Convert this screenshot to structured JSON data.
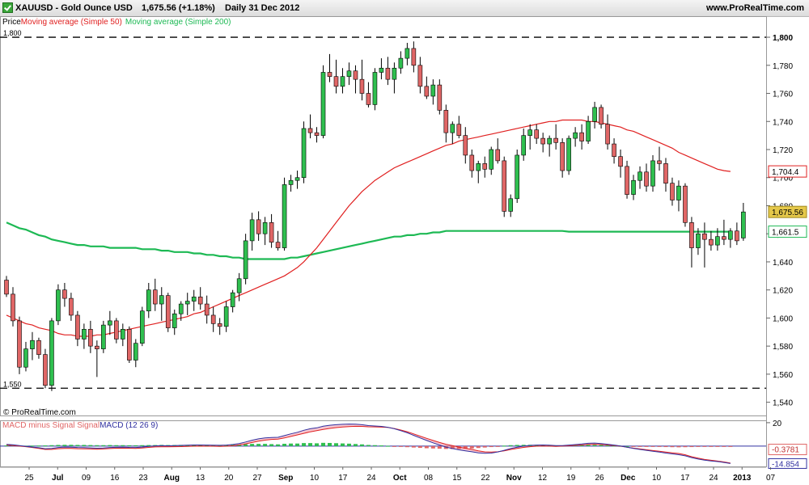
{
  "header": {
    "symbol": "XAUUSD - Gold Ounce USD",
    "price_change": "1,675.56 (+1.18%)",
    "period": "Daily  31 Dec 2012",
    "brand": "www.ProRealTime.com"
  },
  "legend": {
    "price": "Price",
    "ma50": "Moving average (Simple 50)",
    "ma200": "Moving average (Simple 200)"
  },
  "credit": "© ProRealTime.com",
  "macd_legend": {
    "hist": "MACD minus Signal Signal",
    "macd": "MACD (12 26 9)"
  },
  "colors": {
    "up": "#2fbf4f",
    "down": "#e06666",
    "ma50": "#e02020",
    "ma200": "#1db954",
    "macd": "#3030a0",
    "signal": "#e02020",
    "current": "#e5c84a"
  },
  "chart_data": [
    {
      "type": "candlestick",
      "title": "XAUUSD - Gold Ounce USD",
      "ylim": [
        1530,
        1815
      ],
      "y_ticks": [
        "1,540",
        "1,560",
        "1,580",
        "1,600",
        "1,620",
        "1,640",
        "1,660",
        "1,680",
        "1,700",
        "1,720",
        "1,740",
        "1,760",
        "1,780",
        "1,800"
      ],
      "x_tick_labels": [
        "25",
        "Jul",
        "09",
        "16",
        "23",
        "Aug",
        "13",
        "20",
        "27",
        "Sep",
        "10",
        "17",
        "24",
        "Oct",
        "08",
        "15",
        "22",
        "Nov",
        "12",
        "19",
        "26",
        "Dec",
        "10",
        "17",
        "24",
        "2013",
        "07"
      ],
      "bold_tick_labels": [
        "Jul",
        "Aug",
        "Sep",
        "Oct",
        "Nov",
        "Dec",
        "2013"
      ],
      "reference_lines": [
        {
          "value": 1800,
          "label": "1,800"
        },
        {
          "value": 1550,
          "label": "1,550"
        }
      ],
      "candles": [
        [
          1627,
          1630,
          1615,
          1617
        ],
        [
          1617,
          1622,
          1594,
          1598
        ],
        [
          1598,
          1601,
          1560,
          1565
        ],
        [
          1565,
          1583,
          1562,
          1578
        ],
        [
          1578,
          1590,
          1570,
          1584
        ],
        [
          1584,
          1586,
          1571,
          1574
        ],
        [
          1574,
          1578,
          1550,
          1552
        ],
        [
          1552,
          1600,
          1548,
          1598
        ],
        [
          1598,
          1624,
          1595,
          1620
        ],
        [
          1620,
          1625,
          1608,
          1614
        ],
        [
          1614,
          1618,
          1598,
          1602
        ],
        [
          1602,
          1605,
          1580,
          1585
        ],
        [
          1585,
          1596,
          1578,
          1592
        ],
        [
          1592,
          1598,
          1575,
          1580
        ],
        [
          1580,
          1584,
          1558,
          1578
        ],
        [
          1578,
          1598,
          1575,
          1595
        ],
        [
          1595,
          1605,
          1588,
          1598
        ],
        [
          1598,
          1600,
          1582,
          1585
        ],
        [
          1585,
          1596,
          1580,
          1592
        ],
        [
          1592,
          1594,
          1568,
          1570
        ],
        [
          1570,
          1585,
          1565,
          1582
        ],
        [
          1582,
          1608,
          1580,
          1605
        ],
        [
          1605,
          1625,
          1600,
          1620
        ],
        [
          1620,
          1628,
          1605,
          1610
        ],
        [
          1610,
          1622,
          1598,
          1616
        ],
        [
          1616,
          1618,
          1590,
          1593
        ],
        [
          1593,
          1606,
          1588,
          1603
        ],
        [
          1603,
          1612,
          1598,
          1610
        ],
        [
          1610,
          1618,
          1602,
          1612
        ],
        [
          1612,
          1620,
          1605,
          1615
        ],
        [
          1615,
          1622,
          1606,
          1610
        ],
        [
          1610,
          1616,
          1596,
          1602
        ],
        [
          1602,
          1608,
          1590,
          1596
        ],
        [
          1596,
          1600,
          1588,
          1594
        ],
        [
          1594,
          1612,
          1590,
          1608
        ],
        [
          1608,
          1620,
          1604,
          1618
        ],
        [
          1618,
          1632,
          1612,
          1628
        ],
        [
          1628,
          1660,
          1624,
          1655
        ],
        [
          1655,
          1675,
          1648,
          1670
        ],
        [
          1670,
          1676,
          1655,
          1660
        ],
        [
          1660,
          1672,
          1652,
          1668
        ],
        [
          1668,
          1674,
          1650,
          1654
        ],
        [
          1654,
          1662,
          1648,
          1650
        ],
        [
          1650,
          1700,
          1648,
          1695
        ],
        [
          1695,
          1702,
          1690,
          1698
        ],
        [
          1698,
          1705,
          1692,
          1700
        ],
        [
          1700,
          1740,
          1696,
          1735
        ],
        [
          1735,
          1745,
          1728,
          1732
        ],
        [
          1732,
          1736,
          1725,
          1730
        ],
        [
          1730,
          1780,
          1728,
          1775
        ],
        [
          1775,
          1788,
          1768,
          1772
        ],
        [
          1772,
          1784,
          1760,
          1765
        ],
        [
          1765,
          1778,
          1760,
          1772
        ],
        [
          1772,
          1782,
          1766,
          1776
        ],
        [
          1776,
          1780,
          1760,
          1770
        ],
        [
          1770,
          1784,
          1755,
          1760
        ],
        [
          1760,
          1768,
          1750,
          1752
        ],
        [
          1752,
          1778,
          1748,
          1775
        ],
        [
          1775,
          1785,
          1770,
          1778
        ],
        [
          1778,
          1786,
          1766,
          1770
        ],
        [
          1770,
          1782,
          1760,
          1778
        ],
        [
          1778,
          1790,
          1774,
          1785
        ],
        [
          1785,
          1796,
          1780,
          1792
        ],
        [
          1792,
          1797,
          1775,
          1780
        ],
        [
          1780,
          1786,
          1760,
          1765
        ],
        [
          1765,
          1772,
          1756,
          1758
        ],
        [
          1758,
          1770,
          1752,
          1766
        ],
        [
          1766,
          1770,
          1745,
          1748
        ],
        [
          1748,
          1752,
          1725,
          1732
        ],
        [
          1732,
          1740,
          1724,
          1738
        ],
        [
          1738,
          1744,
          1728,
          1730
        ],
        [
          1730,
          1736,
          1710,
          1716
        ],
        [
          1716,
          1720,
          1700,
          1705
        ],
        [
          1705,
          1712,
          1696,
          1710
        ],
        [
          1710,
          1715,
          1700,
          1706
        ],
        [
          1706,
          1722,
          1702,
          1720
        ],
        [
          1720,
          1728,
          1710,
          1712
        ],
        [
          1712,
          1715,
          1672,
          1676
        ],
        [
          1676,
          1688,
          1672,
          1685
        ],
        [
          1685,
          1720,
          1682,
          1716
        ],
        [
          1716,
          1735,
          1712,
          1730
        ],
        [
          1730,
          1738,
          1720,
          1734
        ],
        [
          1734,
          1738,
          1724,
          1728
        ],
        [
          1728,
          1732,
          1718,
          1724
        ],
        [
          1724,
          1730,
          1715,
          1728
        ],
        [
          1728,
          1738,
          1720,
          1725
        ],
        [
          1725,
          1728,
          1700,
          1705
        ],
        [
          1705,
          1730,
          1702,
          1728
        ],
        [
          1728,
          1736,
          1722,
          1732
        ],
        [
          1732,
          1738,
          1720,
          1726
        ],
        [
          1726,
          1744,
          1724,
          1740
        ],
        [
          1740,
          1754,
          1735,
          1750
        ],
        [
          1750,
          1752,
          1735,
          1738
        ],
        [
          1738,
          1745,
          1720,
          1724
        ],
        [
          1724,
          1728,
          1710,
          1715
        ],
        [
          1715,
          1720,
          1700,
          1708
        ],
        [
          1708,
          1712,
          1685,
          1688
        ],
        [
          1688,
          1702,
          1684,
          1698
        ],
        [
          1698,
          1708,
          1692,
          1704
        ],
        [
          1704,
          1710,
          1690,
          1694
        ],
        [
          1694,
          1716,
          1690,
          1712
        ],
        [
          1712,
          1722,
          1705,
          1710
        ],
        [
          1710,
          1714,
          1690,
          1696
        ],
        [
          1696,
          1700,
          1680,
          1684
        ],
        [
          1684,
          1698,
          1676,
          1694
        ],
        [
          1694,
          1696,
          1665,
          1668
        ],
        [
          1668,
          1672,
          1636,
          1650
        ],
        [
          1650,
          1664,
          1645,
          1660
        ],
        [
          1660,
          1668,
          1636,
          1656
        ],
        [
          1656,
          1662,
          1648,
          1652
        ],
        [
          1652,
          1664,
          1648,
          1658
        ],
        [
          1658,
          1670,
          1652,
          1656
        ],
        [
          1656,
          1664,
          1650,
          1662
        ],
        [
          1662,
          1668,
          1652,
          1655
        ],
        [
          1657,
          1682,
          1655,
          1675.56
        ]
      ],
      "ma50": [
        1602,
        1600,
        1598,
        1596,
        1595,
        1593,
        1592,
        1591,
        1589,
        1588,
        1588,
        1587,
        1587,
        1587,
        1588,
        1588,
        1589,
        1590,
        1591,
        1592,
        1593,
        1594,
        1595,
        1596,
        1597,
        1598,
        1599,
        1600,
        1601,
        1603,
        1604,
        1606,
        1608,
        1610,
        1612,
        1614,
        1616,
        1618,
        1620,
        1622,
        1624,
        1626,
        1628,
        1630,
        1633,
        1636,
        1640,
        1645,
        1650,
        1656,
        1662,
        1668,
        1674,
        1680,
        1685,
        1690,
        1694,
        1698,
        1701,
        1704,
        1707,
        1709,
        1711,
        1713,
        1715,
        1717,
        1719,
        1721,
        1723,
        1724,
        1726,
        1727,
        1728,
        1729,
        1730,
        1731,
        1732,
        1733,
        1734,
        1735,
        1736,
        1737,
        1738,
        1739,
        1740,
        1740,
        1741,
        1741,
        1741,
        1741,
        1740,
        1740,
        1739,
        1738,
        1737,
        1736,
        1734,
        1733,
        1731,
        1729,
        1727,
        1725,
        1723,
        1721,
        1718,
        1716,
        1714,
        1712,
        1710,
        1708,
        1706,
        1705,
        1704.4
      ],
      "ma200": [
        1668,
        1666,
        1664,
        1663,
        1661,
        1659,
        1658,
        1656,
        1655,
        1654,
        1653,
        1652,
        1652,
        1651,
        1651,
        1651,
        1650,
        1650,
        1650,
        1650,
        1650,
        1649,
        1649,
        1649,
        1648,
        1648,
        1647,
        1647,
        1647,
        1646,
        1646,
        1645,
        1645,
        1644,
        1644,
        1643,
        1643,
        1642,
        1642,
        1642,
        1642,
        1642,
        1642,
        1642,
        1643,
        1643,
        1644,
        1645,
        1646,
        1647,
        1648,
        1649,
        1650,
        1651,
        1652,
        1653,
        1654,
        1655,
        1656,
        1657,
        1658,
        1658,
        1659,
        1659,
        1660,
        1660,
        1661,
        1661,
        1662,
        1662,
        1662,
        1662,
        1662,
        1662,
        1662,
        1662,
        1662,
        1662,
        1662,
        1662,
        1662,
        1662,
        1662,
        1662,
        1662,
        1662,
        1662,
        1661.5,
        1661.5,
        1661.5,
        1661.5,
        1661.5,
        1661.5,
        1661.5,
        1661.5,
        1661.5,
        1661.5,
        1661.5,
        1661.5,
        1661.5,
        1661.5,
        1661.5,
        1661.5,
        1661.5,
        1661.5,
        1661.5,
        1661.5,
        1661.5,
        1661.5,
        1661.5,
        1661.5,
        1661.5,
        1661.5
      ],
      "current_price": "1,675.56",
      "ma50_last": "1,704.4",
      "ma200_last": "1,661.5",
      "grid": false
    },
    {
      "type": "line",
      "title": "MACD (12 26 9)",
      "ylim": [
        -18,
        22
      ],
      "hist_values": [
        0.6,
        0.7,
        0.5,
        0.3,
        0.4,
        0.5,
        0.6,
        0.8,
        1.0,
        1.1,
        1.1,
        1.0,
        1.0,
        0.9,
        0.8,
        0.8,
        0.9,
        0.8,
        0.8,
        0.7,
        0.7,
        0.8,
        0.9,
        0.9,
        1.0,
        0.9,
        0.9,
        1.0,
        1.0,
        1.1,
        1.0,
        1.0,
        0.9,
        0.9,
        1.0,
        1.1,
        1.2,
        1.6,
        1.9,
        1.9,
        1.9,
        1.7,
        1.5,
        2.0,
        2.2,
        2.2,
        2.6,
        2.6,
        2.4,
        2.8,
        2.7,
        2.5,
        2.3,
        2.1,
        1.8,
        1.5,
        1.0,
        0.8,
        0.6,
        0.2,
        -0.2,
        -0.5,
        -0.9,
        -1.2,
        -1.5,
        -1.8,
        -2.0,
        -2.2,
        -2.4,
        -2.5,
        -2.4,
        -2.2,
        -2.0,
        -1.6,
        -1.2,
        -0.8,
        -0.2,
        0.4,
        0.8,
        1.0,
        1.1,
        1.1,
        1.0,
        0.9,
        0.8,
        0.6,
        0.5,
        0.6,
        0.7,
        0.8,
        1.0,
        1.0,
        0.9,
        0.6,
        0.4,
        0.2,
        0.0,
        -0.2,
        -0.4,
        -0.5,
        -0.6,
        -0.7,
        -0.8,
        -0.9,
        -1.0,
        -0.9,
        -0.8,
        -0.7,
        -0.6,
        -0.5,
        -0.45,
        -0.4,
        -0.3781
      ],
      "macd_values": [
        1.5,
        1.2,
        0.5,
        -0.2,
        -0.8,
        -1.4,
        -2.2,
        -2.0,
        -1.2,
        -0.8,
        -0.9,
        -1.2,
        -1.3,
        -1.5,
        -1.8,
        -1.6,
        -1.2,
        -1.0,
        -0.9,
        -1.1,
        -1.2,
        -0.8,
        -0.2,
        0.2,
        0.4,
        0.3,
        0.4,
        0.6,
        0.8,
        1.0,
        1.0,
        0.9,
        0.8,
        0.7,
        0.9,
        1.4,
        2.2,
        3.5,
        5.0,
        6.2,
        7.0,
        7.4,
        7.5,
        9.0,
        10.5,
        11.8,
        13.5,
        14.8,
        15.6,
        17.0,
        17.8,
        18.3,
        18.6,
        18.8,
        18.7,
        18.3,
        17.5,
        17.2,
        16.8,
        16.1,
        14.8,
        13.2,
        11.4,
        9.2,
        7.0,
        4.8,
        2.8,
        0.9,
        -0.8,
        -2.1,
        -3.2,
        -4.0,
        -4.8,
        -5.7,
        -6.1,
        -5.9,
        -5.0,
        -3.6,
        -2.1,
        -0.9,
        0.0,
        0.6,
        0.9,
        1.0,
        0.8,
        0.4,
        0.5,
        0.9,
        1.3,
        1.8,
        2.4,
        2.6,
        2.2,
        1.6,
        0.9,
        0.1,
        -0.9,
        -1.9,
        -2.8,
        -3.6,
        -4.4,
        -5.1,
        -5.9,
        -6.6,
        -7.3,
        -8.3,
        -9.8,
        -11.0,
        -12.0,
        -12.6,
        -13.2,
        -13.9,
        -14.854
      ],
      "macd_last": "-14.854",
      "hist_last": "-0.3781",
      "zero_line": 0,
      "grid": false
    }
  ]
}
